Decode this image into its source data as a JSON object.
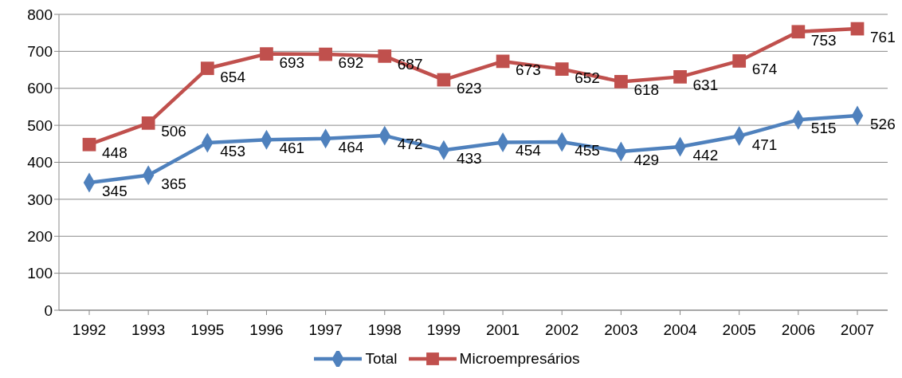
{
  "chart_data": {
    "type": "line",
    "categories": [
      "1992",
      "1993",
      "1995",
      "1996",
      "1997",
      "1998",
      "1999",
      "2001",
      "2002",
      "2003",
      "2004",
      "2005",
      "2006",
      "2007"
    ],
    "series": [
      {
        "name": "Total",
        "color": "#4f81bd",
        "marker": "diamond",
        "values": [
          345,
          365,
          453,
          461,
          464,
          472,
          433,
          454,
          455,
          429,
          442,
          471,
          515,
          526
        ]
      },
      {
        "name": "Microempresários",
        "color": "#c0504d",
        "marker": "square",
        "values": [
          448,
          506,
          654,
          693,
          692,
          687,
          623,
          673,
          652,
          618,
          631,
          674,
          753,
          761
        ]
      }
    ],
    "ylim": [
      0,
      800
    ],
    "yticks": [
      0,
      100,
      200,
      300,
      400,
      500,
      600,
      700,
      800
    ],
    "grid": "y",
    "legend": "bottom",
    "data_labels": true,
    "line_style": "solid"
  }
}
